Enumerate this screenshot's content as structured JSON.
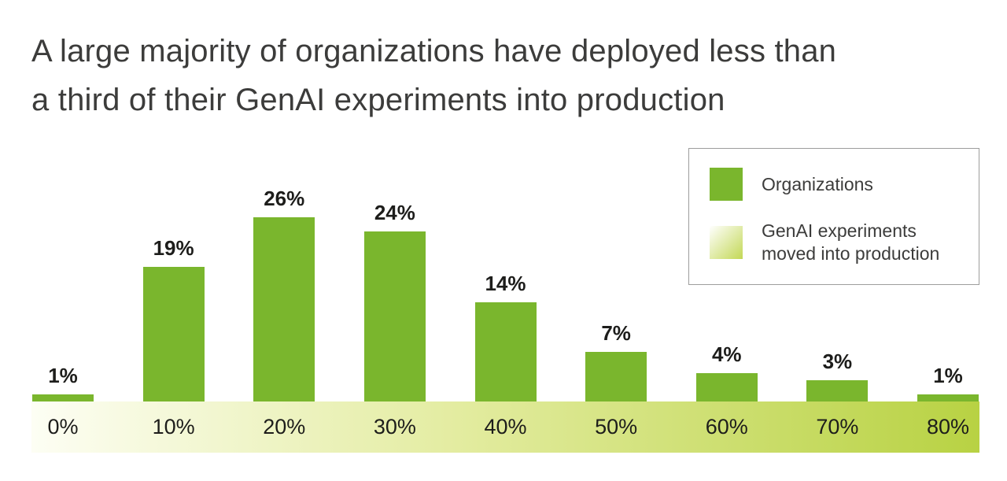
{
  "title": {
    "line1": "A large majority of organizations have deployed less than",
    "line2": "a third of their GenAI experiments into production"
  },
  "legend": {
    "items": [
      {
        "label": "Organizations",
        "swatch": "solid"
      },
      {
        "label": "GenAI experiments moved into production",
        "swatch": "gradient"
      }
    ]
  },
  "colors": {
    "bar": "#7ab62d",
    "band_gradient": [
      "#fdfef4",
      "#e3eca0",
      "#b8d243"
    ],
    "legend_gradient": [
      "#ffffff",
      "#c3d855"
    ]
  },
  "chart_data": {
    "type": "bar",
    "title": "A large majority of organizations have deployed less than a third of their GenAI experiments into production",
    "categories": [
      "0%",
      "10%",
      "20%",
      "30%",
      "40%",
      "50%",
      "60%",
      "70%",
      "80%"
    ],
    "series": [
      {
        "name": "Organizations",
        "values": [
          1,
          19,
          26,
          24,
          14,
          7,
          4,
          3,
          1
        ]
      }
    ],
    "value_labels": [
      "1%",
      "19%",
      "26%",
      "24%",
      "14%",
      "7%",
      "4%",
      "3%",
      "1%"
    ],
    "unit": "%",
    "xlabel": "GenAI experiments moved into production",
    "ylabel": "Organizations",
    "ylim": [
      0,
      30
    ],
    "grid": false,
    "legend_position": "top-right"
  }
}
